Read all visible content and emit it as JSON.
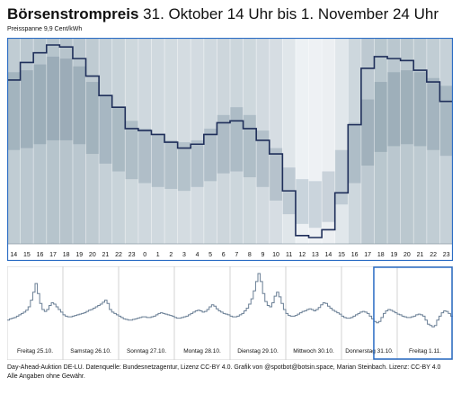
{
  "title_bold": "Börsenstrompreis",
  "title_rest": "31. Oktober 14 Uhr bis 1. November 24 Uhr",
  "subtitle": "Preisspanne 9,9 Cent/kWh",
  "colors": {
    "line": "#1f2f5a",
    "frame": "#2a6cc4",
    "band_dark": "#9aabb5",
    "band_light": "#dde4e8",
    "mini_line": "#6a7f95",
    "divider": "#c8c8c8"
  },
  "chart_data": [
    {
      "type": "line",
      "step": true,
      "x": [
        "14",
        "15",
        "16",
        "17",
        "18",
        "19",
        "20",
        "21",
        "22",
        "23",
        "0",
        "1",
        "2",
        "3",
        "4",
        "5",
        "6",
        "7",
        "8",
        "9",
        "10",
        "11",
        "12",
        "13",
        "14",
        "15",
        "16",
        "17",
        "18",
        "19",
        "20",
        "21",
        "22",
        "23"
      ],
      "values": [
        8.1,
        9.0,
        9.5,
        9.9,
        9.8,
        9.2,
        8.3,
        7.3,
        6.7,
        5.6,
        5.5,
        5.3,
        4.9,
        4.6,
        4.8,
        5.3,
        5.9,
        6.0,
        5.6,
        5.0,
        4.3,
        2.4,
        0.1,
        0.0,
        0.4,
        2.3,
        5.8,
        8.7,
        9.3,
        9.2,
        9.1,
        8.6,
        8.0,
        7.0
      ],
      "bands": [
        [
          4.5,
          8.5
        ],
        [
          4.6,
          8.6
        ],
        [
          4.8,
          8.9
        ],
        [
          5.0,
          9.3
        ],
        [
          5.0,
          9.2
        ],
        [
          4.8,
          8.8
        ],
        [
          4.3,
          8.0
        ],
        [
          3.8,
          7.3
        ],
        [
          3.4,
          6.7
        ],
        [
          3.0,
          6.0
        ],
        [
          2.8,
          5.6
        ],
        [
          2.6,
          5.3
        ],
        [
          2.5,
          5.0
        ],
        [
          2.4,
          4.9
        ],
        [
          2.6,
          5.0
        ],
        [
          2.9,
          5.6
        ],
        [
          3.3,
          6.3
        ],
        [
          3.4,
          6.7
        ],
        [
          3.1,
          6.3
        ],
        [
          2.6,
          5.5
        ],
        [
          1.9,
          4.6
        ],
        [
          1.2,
          3.6
        ],
        [
          0.7,
          3.0
        ],
        [
          0.5,
          2.9
        ],
        [
          0.8,
          3.4
        ],
        [
          1.7,
          4.5
        ],
        [
          2.8,
          5.9
        ],
        [
          3.7,
          7.1
        ],
        [
          4.4,
          8.0
        ],
        [
          4.7,
          8.5
        ],
        [
          4.8,
          8.6
        ],
        [
          4.7,
          8.5
        ],
        [
          4.5,
          8.2
        ],
        [
          4.2,
          7.8
        ]
      ],
      "xlim": [
        0,
        34
      ],
      "ylim": [
        0,
        9.9
      ],
      "grid": true
    },
    {
      "type": "line",
      "step": true,
      "day_labels": [
        "Freitag 25.10.",
        "Samstag 26.10.",
        "Sonntag 27.10.",
        "Montag 28.10.",
        "Dienstag 29.10.",
        "Mittwoch 30.10.",
        "Donnerstag 31.10.",
        "Freitag 1.11."
      ],
      "values": [
        3.0,
        3.2,
        3.3,
        3.4,
        3.6,
        3.8,
        4.0,
        4.2,
        4.5,
        5.0,
        6.0,
        7.2,
        8.5,
        7.0,
        5.5,
        4.6,
        4.3,
        4.6,
        5.2,
        5.6,
        5.4,
        5.0,
        4.6,
        4.2,
        3.8,
        3.6,
        3.5,
        3.5,
        3.6,
        3.7,
        3.8,
        3.9,
        4.0,
        4.1,
        4.3,
        4.5,
        4.6,
        4.8,
        5.0,
        5.2,
        5.4,
        5.7,
        6.0,
        5.5,
        4.6,
        4.2,
        4.0,
        3.8,
        3.6,
        3.4,
        3.2,
        3.1,
        3.0,
        3.0,
        3.1,
        3.2,
        3.3,
        3.4,
        3.5,
        3.5,
        3.4,
        3.4,
        3.5,
        3.6,
        3.8,
        4.0,
        4.1,
        4.0,
        3.9,
        3.8,
        3.7,
        3.6,
        3.4,
        3.3,
        3.3,
        3.4,
        3.5,
        3.6,
        3.8,
        4.0,
        4.2,
        4.4,
        4.5,
        4.4,
        4.2,
        4.3,
        4.6,
        5.0,
        5.3,
        5.1,
        4.7,
        4.4,
        4.2,
        4.0,
        3.9,
        3.8,
        3.6,
        3.5,
        3.5,
        3.6,
        3.8,
        4.0,
        4.4,
        4.8,
        5.4,
        6.2,
        7.4,
        8.8,
        10.0,
        8.8,
        7.0,
        5.8,
        5.2,
        5.0,
        5.6,
        6.6,
        7.2,
        6.5,
        5.5,
        4.6,
        4.0,
        3.7,
        3.6,
        3.6,
        3.7,
        3.9,
        4.1,
        4.3,
        4.4,
        4.6,
        4.7,
        4.6,
        4.4,
        4.6,
        4.9,
        5.3,
        5.6,
        5.5,
        5.1,
        4.8,
        4.5,
        4.3,
        4.1,
        3.9,
        3.6,
        3.4,
        3.3,
        3.3,
        3.4,
        3.6,
        3.8,
        4.0,
        4.2,
        4.3,
        4.2,
        4.0,
        3.6,
        3.2,
        2.8,
        2.6,
        2.8,
        3.4,
        4.0,
        4.4,
        4.6,
        4.5,
        4.3,
        4.1,
        3.9,
        3.8,
        3.6,
        3.5,
        3.4,
        3.4,
        3.5,
        3.6,
        3.8,
        3.9,
        3.8,
        3.6,
        3.0,
        2.4,
        2.2,
        2.0,
        2.2,
        3.0,
        3.6,
        4.1,
        4.4,
        4.3,
        4.0,
        3.6
      ],
      "ylim": [
        0,
        10
      ],
      "highlight_days": [
        "Donnerstag 31.10.",
        "Freitag 1.11."
      ]
    }
  ],
  "footer": {
    "line1": "Day-Ahead-Auktion DE-LU. Datenquelle: Bundesnetzagentur, Lizenz CC-BY 4.0. Grafik von @spotbot@botsin.space, Marian Steinbach. Lizenz: CC-BY 4.0",
    "line2": "Alle Angaben ohne Gewähr."
  }
}
